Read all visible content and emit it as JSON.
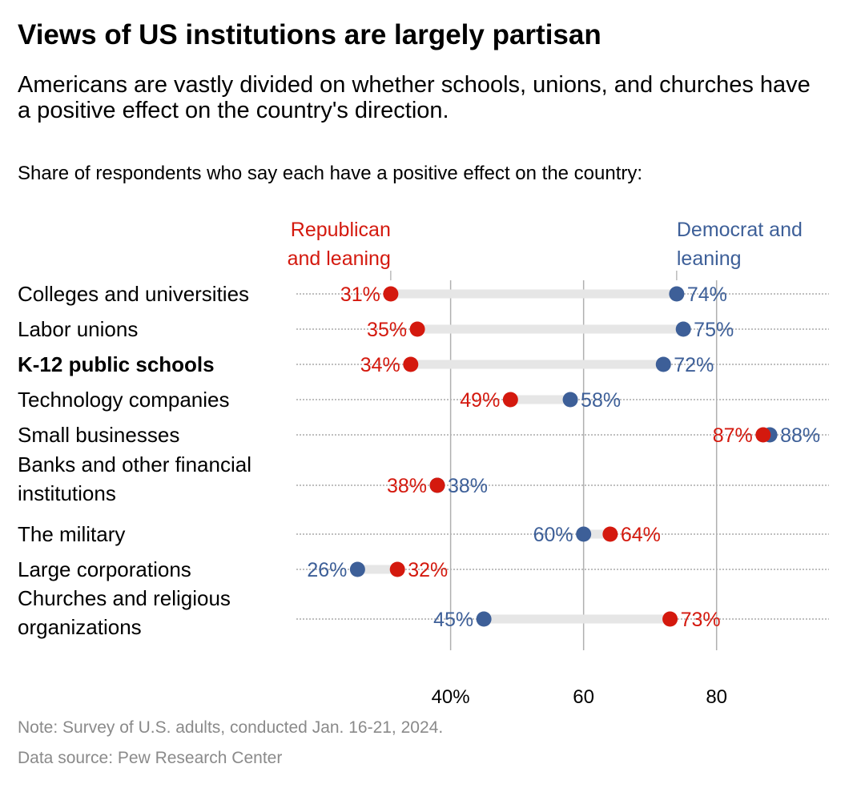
{
  "title": "Views of US institutions are largely partisan",
  "subtitle": "Americans are vastly divided on whether schools, unions, and churches have a positive effect on the country's direction.",
  "description": "Share of respondents who say each have a positive effect on the country:",
  "notes": {
    "note": "Note: Survey of U.S. adults, conducted Jan. 16-21, 2024.",
    "source": "Data source: Pew Research Center"
  },
  "chart_data": {
    "type": "dot",
    "xlim": [
      16.8,
      96.9
    ],
    "xticks": [
      40,
      60,
      80
    ],
    "xtick_labels": [
      "40%",
      "60",
      "80"
    ],
    "grid": true,
    "colors": {
      "republican": "#d4190e",
      "democrat": "#3d5f98",
      "bar": "#e6e6e6"
    },
    "series": [
      {
        "name": "Republican and leaning",
        "key": "rep"
      },
      {
        "name": "Democrat and leaning",
        "key": "dem"
      }
    ],
    "categories": [
      {
        "label": [
          "Colleges and universities"
        ],
        "rep": 31,
        "dem": 74,
        "bold": false
      },
      {
        "label": [
          "Labor unions"
        ],
        "rep": 35,
        "dem": 75,
        "bold": false
      },
      {
        "label": [
          "K-12 public schools"
        ],
        "rep": 34,
        "dem": 72,
        "bold": true
      },
      {
        "label": [
          "Technology companies"
        ],
        "rep": 49,
        "dem": 58,
        "bold": false
      },
      {
        "label": [
          "Small businesses"
        ],
        "rep": 87,
        "dem": 88,
        "bold": false
      },
      {
        "label": [
          "Banks and other financial",
          "institutions"
        ],
        "rep": 38,
        "dem": 38,
        "bold": false
      },
      {
        "label": [
          "The military"
        ],
        "rep": 64,
        "dem": 60,
        "bold": false
      },
      {
        "label": [
          "Large corporations"
        ],
        "rep": 32,
        "dem": 26,
        "bold": false
      },
      {
        "label": [
          "Churches and religious",
          "organizations"
        ],
        "rep": 73,
        "dem": 45,
        "bold": false
      }
    ]
  }
}
